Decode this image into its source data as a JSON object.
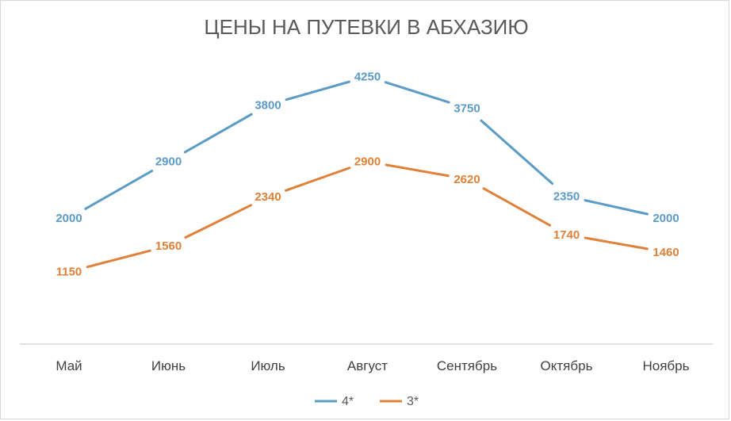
{
  "chart_data": {
    "type": "line",
    "title": "ЦЕНЫ НА ПУТЕВКИ В АБХАЗИЮ",
    "categories": [
      "Май",
      "Июнь",
      "Июль",
      "Август",
      "Сентябрь",
      "Октябрь",
      "Ноябрь"
    ],
    "series": [
      {
        "name": "4*",
        "color": "#5b9bc6",
        "values": [
          2000,
          2900,
          3800,
          4250,
          3750,
          2350,
          2000
        ]
      },
      {
        "name": "3*",
        "color": "#e0813a",
        "values": [
          1150,
          1560,
          2340,
          2900,
          2620,
          1740,
          1460
        ]
      }
    ],
    "ylim": [
      0,
      4700
    ],
    "grid": false,
    "legend": "bottom",
    "data_labels": true
  }
}
